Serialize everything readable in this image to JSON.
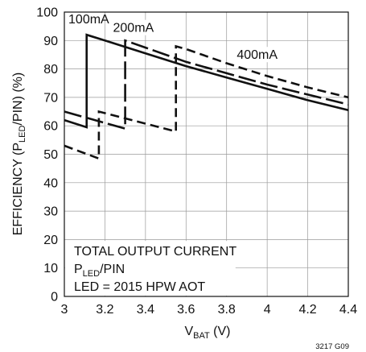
{
  "chart_data": {
    "type": "line",
    "xlabel_main": "V",
    "xlabel_sub": "BAT",
    "xlabel_tail": " (V)",
    "ylabel_pre": "EFFICIENCY (P",
    "ylabel_sub": "LED",
    "ylabel_post": "/PIN) (%)",
    "xlim": [
      3,
      4.4
    ],
    "ylim": [
      0,
      100
    ],
    "x_ticks": [
      "3",
      "3.2",
      "3.4",
      "3.6",
      "3.8",
      "4",
      "4.2",
      "4.4"
    ],
    "y_ticks": [
      "0",
      "10",
      "20",
      "30",
      "40",
      "50",
      "60",
      "70",
      "80",
      "90",
      "100"
    ],
    "grid": true,
    "series": [
      {
        "name": "100mA",
        "dash": "solid",
        "points": [
          [
            3,
            62
          ],
          [
            3.11,
            59.5
          ],
          [
            3.11,
            92
          ],
          [
            3.2,
            90
          ],
          [
            3.4,
            85.5
          ],
          [
            3.6,
            81
          ],
          [
            3.8,
            77
          ],
          [
            4,
            73
          ],
          [
            4.2,
            69
          ],
          [
            4.4,
            65.5
          ]
        ]
      },
      {
        "name": "200mA",
        "dash": "long-dash",
        "points": [
          [
            3,
            65
          ],
          [
            3.3,
            59
          ],
          [
            3.3,
            90
          ],
          [
            3.4,
            87.5
          ],
          [
            3.6,
            82.5
          ],
          [
            3.8,
            78.5
          ],
          [
            4,
            74.5
          ],
          [
            4.2,
            71
          ],
          [
            4.4,
            67.5
          ]
        ]
      },
      {
        "name": "400mA",
        "dash": "short-dash",
        "points": [
          [
            3,
            53
          ],
          [
            3.17,
            48.5
          ],
          [
            3.17,
            65
          ],
          [
            3.55,
            58
          ],
          [
            3.55,
            88
          ],
          [
            3.6,
            87
          ],
          [
            3.8,
            82
          ],
          [
            4,
            77.5
          ],
          [
            4.2,
            73.5
          ],
          [
            4.4,
            70
          ]
        ]
      }
    ],
    "series_labels": [
      {
        "text": "100mA",
        "x": 3.02,
        "y": 96
      },
      {
        "text": "200mA",
        "x": 3.24,
        "y": 93
      },
      {
        "text": "400mA",
        "x": 3.85,
        "y": 83.5
      }
    ],
    "legend_note": {
      "line1": "TOTAL OUTPUT CURRENT",
      "line2_pre": "P",
      "line2_sub": "LED",
      "line2_post": "/PIN",
      "line3": "LED = 2015 HPW AOT"
    },
    "figure_id": "3217 G09"
  }
}
